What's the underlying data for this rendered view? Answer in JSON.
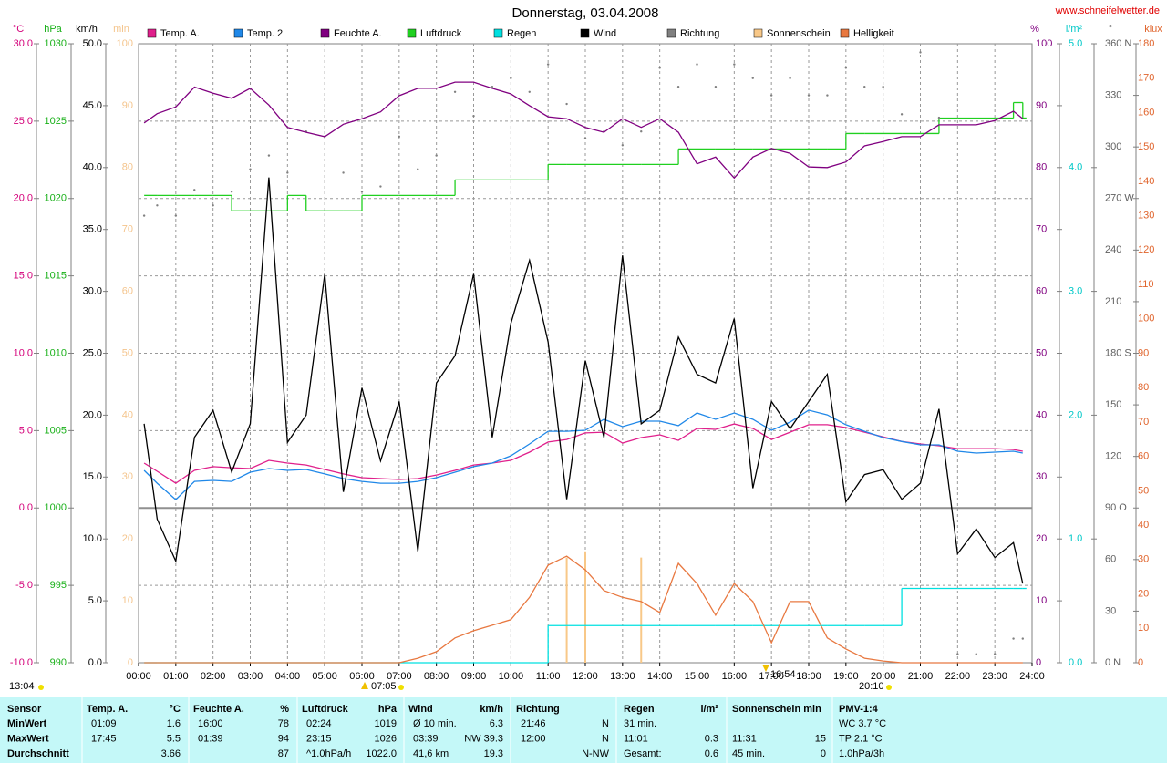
{
  "chart_data": {
    "type": "line",
    "title": "Donnerstag, 03.04.2008",
    "source": "www.schneifelwetter.de",
    "annotations": [
      "13:04",
      "07:05",
      "16:54",
      "20:10"
    ],
    "xlim": [
      0,
      24
    ],
    "xticks": [
      {
        "value": 0,
        "label": "00:00"
      },
      {
        "value": 1,
        "label": "01:00"
      },
      {
        "value": 2,
        "label": "02:00"
      },
      {
        "value": 3,
        "label": "03:00"
      },
      {
        "value": 4,
        "label": "04:00"
      },
      {
        "value": 5,
        "label": "05:00"
      },
      {
        "value": 6,
        "label": "06:00"
      },
      {
        "value": 7,
        "label": "07:00"
      },
      {
        "value": 8,
        "label": "08:00"
      },
      {
        "value": 9,
        "label": "09:00"
      },
      {
        "value": 10,
        "label": "10:00"
      },
      {
        "value": 11,
        "label": "11:00"
      },
      {
        "value": 12,
        "label": "12:00"
      },
      {
        "value": 13,
        "label": "13:00"
      },
      {
        "value": 14,
        "label": "14:00"
      },
      {
        "value": 15,
        "label": "15:00"
      },
      {
        "value": 16,
        "label": "16:00"
      },
      {
        "value": 17,
        "label": "17:00"
      },
      {
        "value": 18,
        "label": "18:00"
      },
      {
        "value": 19,
        "label": "19:00"
      },
      {
        "value": 20,
        "label": "20:00"
      },
      {
        "value": 21,
        "label": "21:00"
      },
      {
        "value": 22,
        "label": "22:00"
      },
      {
        "value": 23,
        "label": "23:00"
      },
      {
        "value": 24,
        "label": "24:00"
      }
    ],
    "grid": true,
    "axes": [
      {
        "unit": "°C",
        "color": "#d4007a",
        "lim": [
          -10,
          30
        ],
        "ticks": [
          {
            "value": 30,
            "label": "30.0"
          },
          {
            "value": 25,
            "label": "25.0"
          },
          {
            "value": 20,
            "label": "20.0"
          },
          {
            "value": 15,
            "label": "15.0"
          },
          {
            "value": 10,
            "label": "10.0"
          },
          {
            "value": 5,
            "label": "5.0"
          },
          {
            "value": 0,
            "label": "0.0"
          },
          {
            "value": -5,
            "label": "-5.0"
          },
          {
            "value": -10,
            "label": "-10.0"
          }
        ]
      },
      {
        "unit": "hPa",
        "color": "#18b018",
        "lim": [
          990,
          1030
        ],
        "ticks": [
          1030,
          1025,
          1020,
          1015,
          1010,
          1005,
          1000,
          995,
          990
        ]
      },
      {
        "unit": "km/h",
        "color": "#000000",
        "lim": [
          0,
          50
        ],
        "ticks": [
          {
            "value": 50,
            "label": "50.0"
          },
          {
            "value": 45,
            "label": "45.0"
          },
          {
            "value": 40,
            "label": "40.0"
          },
          {
            "value": 35,
            "label": "35.0"
          },
          {
            "value": 30,
            "label": "30.0"
          },
          {
            "value": 25,
            "label": "25.0"
          },
          {
            "value": 20,
            "label": "20.0"
          },
          {
            "value": 15,
            "label": "15.0"
          },
          {
            "value": 10,
            "label": "10.0"
          },
          {
            "value": 5,
            "label": "5.0"
          },
          {
            "value": 0,
            "label": "0.0"
          }
        ]
      },
      {
        "unit": "min",
        "color": "#f4c48c",
        "lim": [
          0,
          100
        ],
        "ticks": [
          100,
          90,
          80,
          70,
          60,
          50,
          40,
          30,
          20,
          10,
          0
        ]
      },
      {
        "unit": "%",
        "color": "#800080",
        "lim": [
          0,
          100
        ],
        "ticks": [
          100,
          90,
          80,
          70,
          60,
          50,
          40,
          30,
          20,
          10,
          0
        ]
      },
      {
        "unit": "l/m²",
        "color": "#00c8c8",
        "lim": [
          0,
          5
        ],
        "ticks": [
          {
            "value": 5,
            "label": "5.0"
          },
          {
            "value": 4,
            "label": "4.0"
          },
          {
            "value": 3,
            "label": "3.0"
          },
          {
            "value": 2,
            "label": "2.0"
          },
          {
            "value": 1,
            "label": "1.0"
          },
          {
            "value": 0,
            "label": "0.0"
          }
        ]
      },
      {
        "unit": "°",
        "color": "#606060",
        "lim": [
          0,
          360
        ],
        "ticks": [
          {
            "value": 360,
            "label": "360 N"
          },
          330,
          300,
          {
            "value": 270,
            "label": "270 W"
          },
          240,
          210,
          {
            "value": 180,
            "label": "180 S"
          },
          150,
          120,
          {
            "value": 90,
            "label": "90 O"
          },
          60,
          30,
          {
            "value": 0,
            "label": "0 N"
          }
        ]
      },
      {
        "unit": "klux",
        "color": "#e0642c",
        "lim": [
          0,
          180
        ],
        "ticks": [
          180,
          170,
          160,
          150,
          140,
          130,
          120,
          110,
          100,
          90,
          80,
          70,
          60,
          50,
          40,
          30,
          20,
          10,
          0
        ]
      }
    ],
    "x": [
      0.15,
      0.5,
      1,
      1.5,
      2,
      2.5,
      3,
      3.5,
      4,
      4.5,
      5,
      5.5,
      6,
      6.5,
      7,
      7.5,
      8,
      8.5,
      9,
      9.5,
      10,
      10.5,
      11,
      11.5,
      12,
      12.5,
      13,
      13.5,
      14,
      14.5,
      15,
      15.5,
      16,
      16.5,
      17,
      17.5,
      18,
      18.5,
      19,
      19.5,
      20,
      20.5,
      21,
      21.5,
      22,
      22.5,
      23,
      23.5,
      23.75
    ],
    "series": [
      {
        "name": "Temp. A.",
        "color": "#e0208c",
        "axis": 0,
        "style": "line",
        "values": [
          2.9,
          2.37,
          1.6,
          2.43,
          2.67,
          2.6,
          2.55,
          3.08,
          2.9,
          2.78,
          2.49,
          2.2,
          1.96,
          1.9,
          1.84,
          1.9,
          2.13,
          2.43,
          2.78,
          2.9,
          3.08,
          3.61,
          4.26,
          4.43,
          4.85,
          4.9,
          4.2,
          4.55,
          4.73,
          4.37,
          5.14,
          5.08,
          5.43,
          5.14,
          4.43,
          4.9,
          5.38,
          5.38,
          5.2,
          4.9,
          4.6,
          4.3,
          4.14,
          4.02,
          3.84,
          3.84,
          3.84,
          3.78,
          3.67
        ]
      },
      {
        "name": "Temp. 2",
        "color": "#2088e8",
        "axis": 0,
        "style": "line",
        "values": [
          2.43,
          1.6,
          0.54,
          1.72,
          1.78,
          1.72,
          2.31,
          2.55,
          2.43,
          2.49,
          2.2,
          1.9,
          1.72,
          1.6,
          1.6,
          1.72,
          1.96,
          2.31,
          2.67,
          2.9,
          3.37,
          4.14,
          4.96,
          4.96,
          5.02,
          5.73,
          5.26,
          5.61,
          5.61,
          5.32,
          6.14,
          5.73,
          6.14,
          5.73,
          5.02,
          5.55,
          6.32,
          6.02,
          5.38,
          4.96,
          4.55,
          4.3,
          4.08,
          4.08,
          3.67,
          3.55,
          3.61,
          3.67,
          3.55
        ]
      },
      {
        "name": "Feuchte A.",
        "color": "#800080",
        "axis": 4,
        "style": "line",
        "values": [
          87.2,
          88.7,
          89.8,
          93,
          92,
          91.2,
          92.8,
          90.1,
          86.5,
          85.7,
          85,
          87,
          87.9,
          89,
          91.6,
          92.8,
          92.8,
          93.8,
          93.8,
          92.8,
          91.9,
          90,
          88.2,
          87.9,
          86.5,
          85.7,
          87.9,
          86.5,
          87.9,
          85.7,
          80.6,
          81.7,
          78.3,
          81.7,
          83.1,
          82.3,
          80.1,
          80,
          80.9,
          83.5,
          84.2,
          85,
          85,
          86.9,
          86.9,
          86.9,
          87.6,
          89.1,
          87.9
        ]
      },
      {
        "name": "Luftdruck",
        "color": "#20d020",
        "axis": 1,
        "style": "step",
        "values": [
          1020.2,
          1020.2,
          1020.2,
          1020.2,
          1020.2,
          1019.2,
          1019.2,
          1019.2,
          1020.2,
          1019.2,
          1019.2,
          1019.2,
          1020.2,
          1020.2,
          1020.2,
          1020.2,
          1020.2,
          1021.2,
          1021.2,
          1021.2,
          1021.2,
          1021.2,
          1022.2,
          1022.2,
          1022.2,
          1022.2,
          1022.2,
          1022.2,
          1022.2,
          1023.2,
          1023.2,
          1023.2,
          1023.2,
          1023.2,
          1023.2,
          1023.2,
          1023.2,
          1023.2,
          1024.2,
          1024.2,
          1024.2,
          1024.2,
          1024.2,
          1025.2,
          1025.2,
          1025.2,
          1025.2,
          1026.2,
          1025.2
        ]
      },
      {
        "name": "Regen",
        "color": "#00e0e0",
        "axis": 5,
        "style": "step",
        "values": [
          0,
          0,
          0,
          0,
          0,
          0,
          0,
          0,
          0,
          0,
          0,
          0,
          0,
          0,
          0,
          0,
          0,
          0,
          0,
          0,
          0,
          0,
          0.3,
          0.3,
          0.3,
          0.3,
          0.3,
          0.3,
          0.3,
          0.3,
          0.3,
          0.3,
          0.3,
          0.3,
          0.3,
          0.3,
          0.3,
          0.3,
          0.3,
          0.3,
          0.3,
          0.6,
          0.6,
          0.6,
          0.6,
          0.6,
          0.6,
          0.6,
          0.6
        ]
      },
      {
        "name": "Wind",
        "color": "#000000",
        "axis": 2,
        "style": "line",
        "values": [
          19.3,
          11.6,
          8.2,
          18.2,
          20.4,
          15.4,
          19.3,
          39.2,
          17.8,
          20,
          31.4,
          13.8,
          22.2,
          16.3,
          21.1,
          9,
          22.6,
          24.8,
          31.4,
          18.2,
          27.4,
          32.5,
          25.9,
          13.2,
          24.4,
          18.2,
          32.9,
          19.3,
          20.4,
          26.3,
          23.3,
          22.6,
          27.8,
          14.1,
          21.1,
          18.9,
          21.1,
          23.3,
          13,
          15.2,
          15.6,
          13.2,
          14.5,
          20.5,
          8.8,
          10.8,
          8.5,
          9.7,
          6.4
        ]
      },
      {
        "name": "Richtung",
        "color": "#808080",
        "axis": 6,
        "style": "dots",
        "values": [
          260,
          266,
          260,
          275,
          266,
          274,
          287,
          295,
          285,
          309,
          306,
          285,
          274,
          277,
          306,
          287,
          295,
          332,
          318,
          335,
          340,
          332,
          348,
          325,
          305,
          309,
          301,
          309,
          346,
          335,
          348,
          335,
          348,
          340,
          330,
          340,
          330,
          330,
          346,
          335,
          335,
          319,
          355,
          317,
          5,
          5,
          5,
          14,
          14
        ]
      },
      {
        "name": "Sonnenschein",
        "color": "#f8c888",
        "axis": 3,
        "style": "spikes",
        "values": [
          0,
          0,
          0,
          0,
          0,
          0,
          0,
          0,
          0,
          0,
          0,
          0,
          0,
          0,
          0,
          0,
          0,
          0,
          0,
          0,
          0,
          0,
          0,
          17,
          18,
          0,
          0,
          17,
          0,
          0,
          0,
          0,
          0,
          0,
          0,
          0,
          0,
          0,
          0,
          0,
          0,
          0,
          0,
          0,
          0,
          0,
          0,
          0,
          0
        ]
      },
      {
        "name": "Helligkeit",
        "color": "#e87840",
        "axis": 7,
        "style": "line",
        "values": [
          0,
          0,
          0,
          0,
          0,
          0,
          0,
          0,
          0,
          0,
          0,
          0,
          0,
          0,
          0,
          1.3,
          3.2,
          7.2,
          9.3,
          10.9,
          12.5,
          19,
          28.4,
          31,
          27,
          21,
          19,
          17.8,
          14.6,
          28.9,
          23,
          13.8,
          23,
          17.8,
          5.8,
          17.8,
          17.8,
          7.2,
          4,
          1.3,
          0.5,
          0,
          0,
          0,
          0,
          0,
          0,
          0,
          0
        ]
      }
    ]
  },
  "table": {
    "header": [
      "Sensor",
      "Temp. A.",
      "°C",
      "Feuchte A.",
      "%",
      "Luftdruck",
      "hPa",
      "Wind",
      "km/h",
      "Richtung",
      null,
      "Regen",
      "l/m²",
      "Sonnenschein min",
      null,
      "PMV-1:4"
    ],
    "rows": [
      [
        "MinWert",
        "01:09",
        "1.6",
        "16:00",
        "78",
        "02:24",
        "1019",
        "Ø 10 min.",
        "6.3",
        "21:46",
        "N",
        "31 min.",
        null,
        null,
        null,
        "WC 3.7 °C"
      ],
      [
        "MaxWert",
        "17:45",
        "5.5",
        "01:39",
        "94",
        "23:15",
        "1026",
        "03:39",
        "NW 39.3",
        "12:00",
        "N",
        "11:01",
        "0.3",
        "11:31",
        "15",
        "TP 2.1 °C"
      ],
      [
        "Durchschnitt",
        null,
        "3.66",
        null,
        "87",
        "^1.0hPa/h",
        "1022.0",
        "41,6 km",
        "19.3",
        null,
        "N-NW",
        "Gesamt:",
        "0.6",
        "45 min.",
        "0",
        "1.0hPa/3h"
      ]
    ]
  }
}
